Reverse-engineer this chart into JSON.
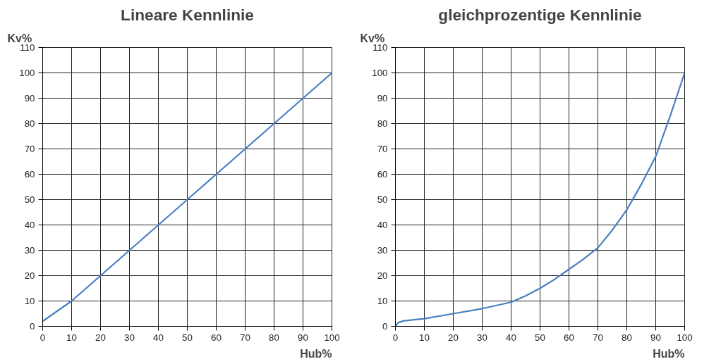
{
  "chart_data": [
    {
      "type": "line",
      "title": "Lineare Kennlinie",
      "xlabel": "Hub%",
      "ylabel": "Kv%",
      "x": [
        0,
        10,
        20,
        30,
        40,
        50,
        60,
        70,
        80,
        90,
        100
      ],
      "series": [
        {
          "color": "#4a7fc1",
          "values": [
            2,
            10,
            20,
            30,
            40,
            50,
            60,
            70,
            80,
            90,
            100
          ]
        }
      ],
      "xlim": [
        0,
        100
      ],
      "ylim": [
        0,
        110
      ],
      "xticks": [
        0,
        10,
        20,
        30,
        40,
        50,
        60,
        70,
        80,
        90,
        100
      ],
      "yticks": [
        0,
        10,
        20,
        30,
        40,
        50,
        60,
        70,
        80,
        90,
        100,
        110
      ],
      "grid": true
    },
    {
      "type": "line",
      "title": "gleichprozentige Kennlinie",
      "xlabel": "Hub%",
      "ylabel": "Kv%",
      "x": [
        0,
        1,
        3,
        10,
        20,
        30,
        40,
        45,
        50,
        55,
        60,
        65,
        70,
        75,
        80,
        85,
        90,
        95,
        100
      ],
      "series": [
        {
          "color": "#4a7fc1",
          "values": [
            0,
            1.5,
            2.2,
            3,
            5,
            7,
            9.5,
            12,
            15,
            18.5,
            22.5,
            26.5,
            31,
            38,
            46,
            56,
            67,
            83,
            100
          ]
        }
      ],
      "xlim": [
        0,
        100
      ],
      "ylim": [
        0,
        110
      ],
      "xticks": [
        0,
        10,
        20,
        30,
        40,
        50,
        60,
        70,
        80,
        90,
        100
      ],
      "yticks": [
        0,
        10,
        20,
        30,
        40,
        50,
        60,
        70,
        80,
        90,
        100,
        110
      ],
      "grid": true
    }
  ]
}
